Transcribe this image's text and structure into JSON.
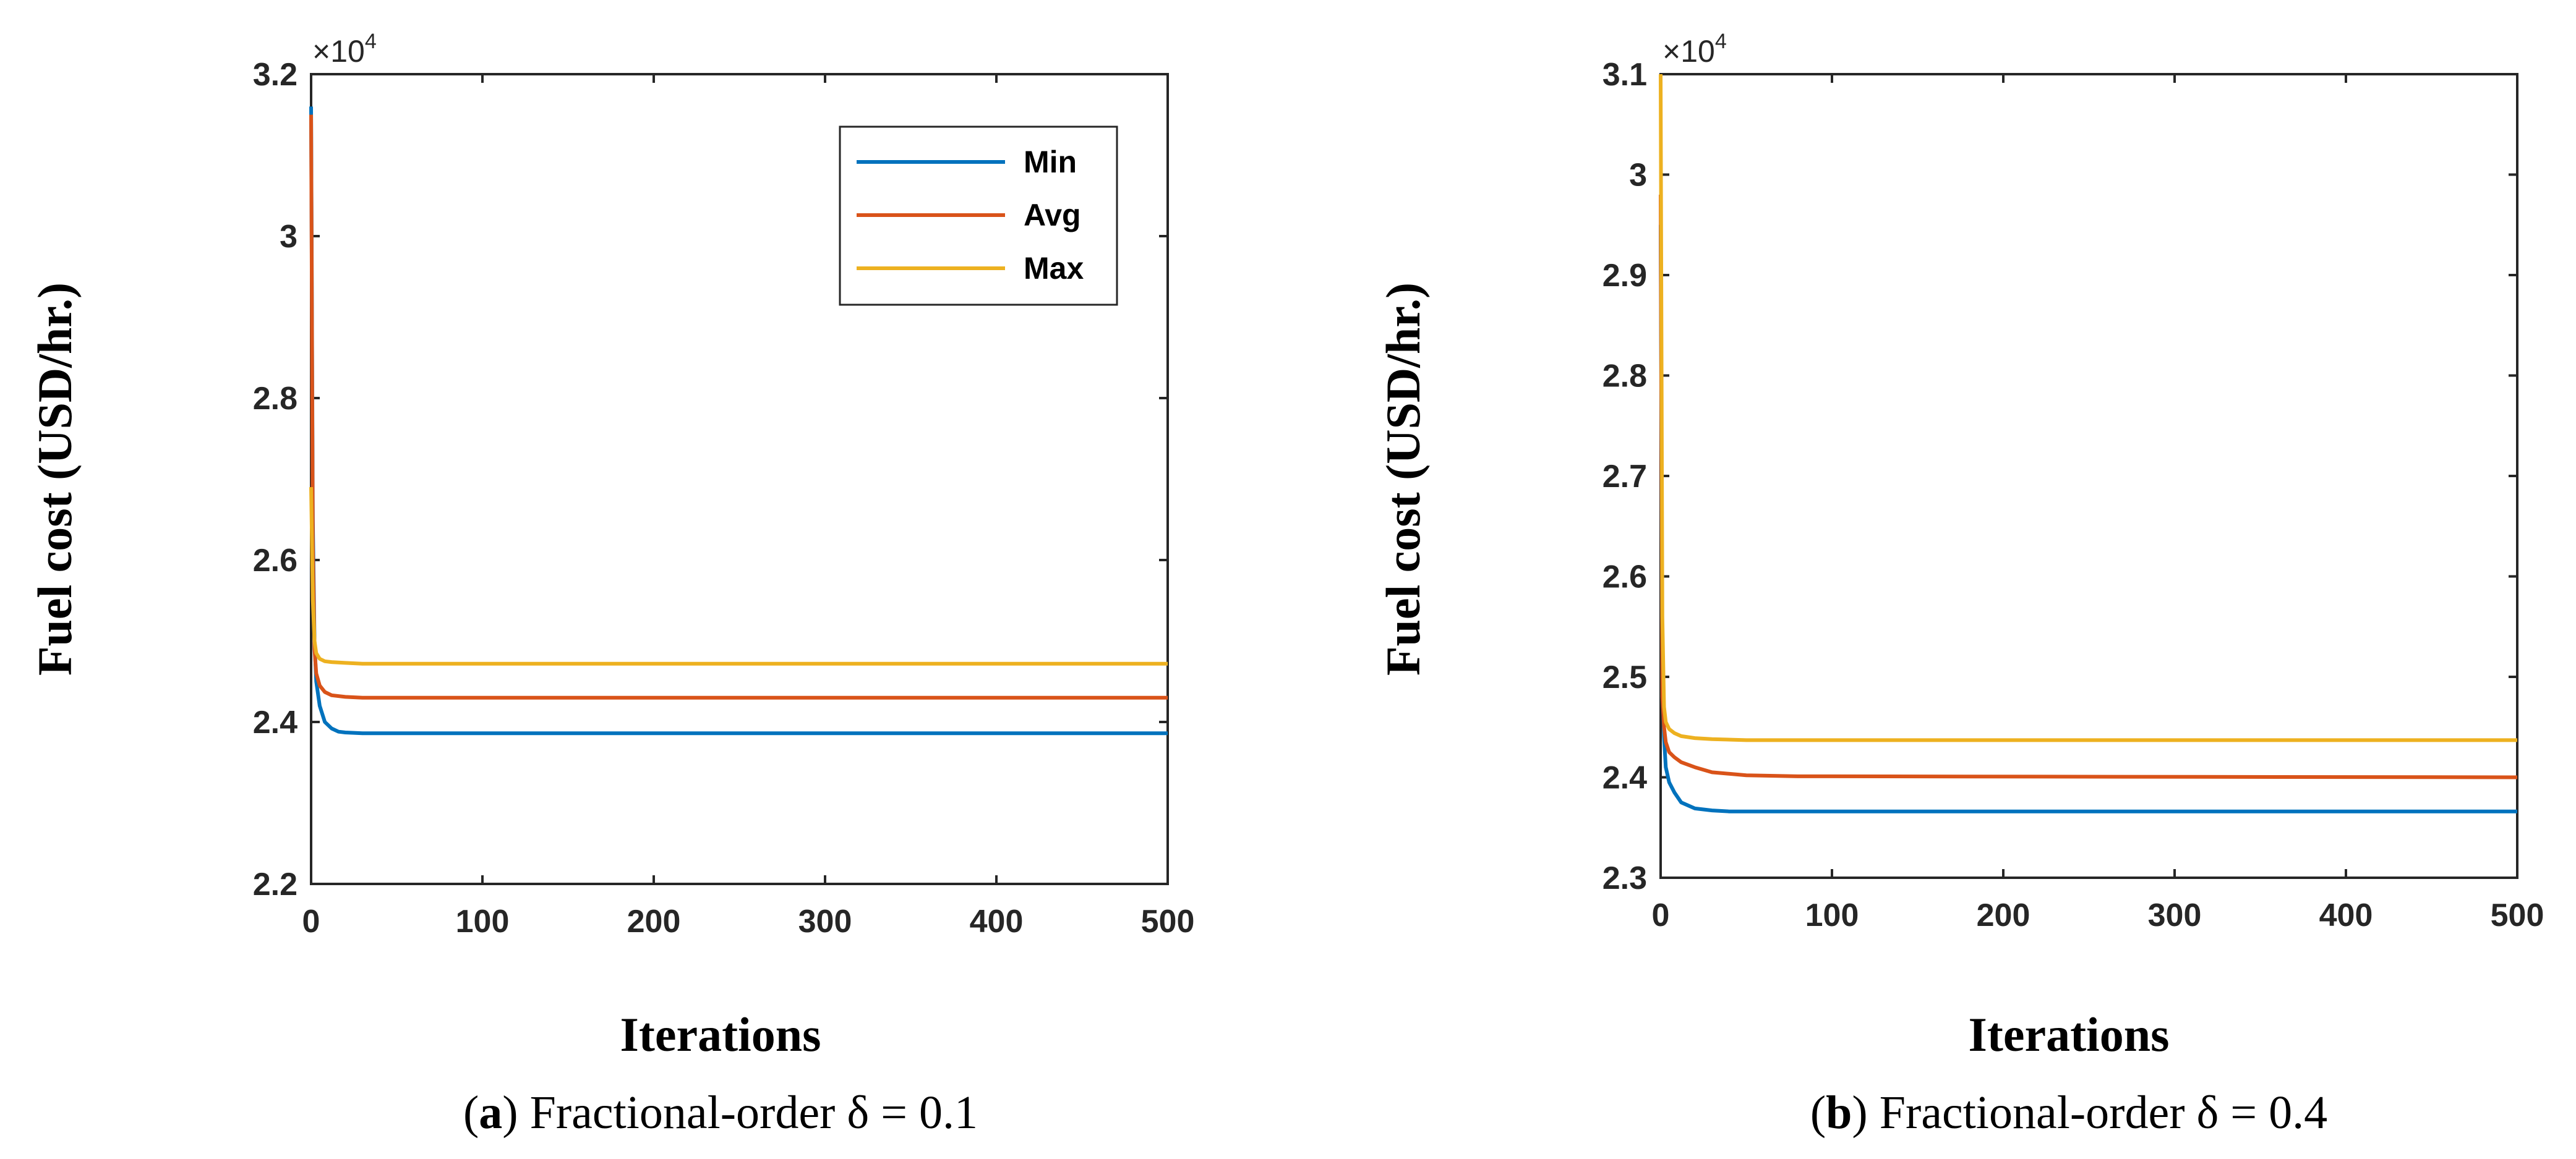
{
  "chart_data": [
    {
      "type": "line",
      "panel": "a",
      "caption_letter": "a",
      "caption_text": "Fractional-order δ = 0.1",
      "xlabel": "Iterations",
      "ylabel": "Fuel cost (USD/hr.)",
      "y_exponent_base": "×10",
      "y_exponent_power": "4",
      "xlim": [
        0,
        500
      ],
      "ylim": [
        2.2,
        3.2
      ],
      "xticks": [
        0,
        100,
        200,
        300,
        400,
        500
      ],
      "xtick_labels": [
        "0",
        "100",
        "200",
        "300",
        "400",
        "500"
      ],
      "yticks": [
        2.2,
        2.4,
        2.6,
        2.8,
        3.0,
        3.2
      ],
      "ytick_labels": [
        "2.2",
        "2.4",
        "2.6",
        "2.8",
        "3",
        "3.2"
      ],
      "legend_position": "top-right",
      "series": [
        {
          "name": "Min",
          "color": "#0072BD",
          "x": [
            0,
            1,
            2,
            3,
            5,
            8,
            12,
            16,
            20,
            30,
            50,
            100,
            500
          ],
          "y": [
            3.16,
            2.65,
            2.5,
            2.45,
            2.42,
            2.4,
            2.392,
            2.388,
            2.387,
            2.386,
            2.386,
            2.386,
            2.386
          ]
        },
        {
          "name": "Avg",
          "color": "#D95319",
          "x": [
            0,
            1,
            2,
            3,
            5,
            8,
            12,
            20,
            30,
            100,
            500
          ],
          "y": [
            3.15,
            2.62,
            2.49,
            2.46,
            2.445,
            2.437,
            2.433,
            2.431,
            2.43,
            2.43,
            2.43
          ]
        },
        {
          "name": "Max",
          "color": "#EDB120",
          "x": [
            0,
            1,
            2,
            3,
            5,
            8,
            12,
            20,
            30,
            100,
            500
          ],
          "y": [
            2.69,
            2.55,
            2.5,
            2.485,
            2.478,
            2.475,
            2.474,
            2.473,
            2.472,
            2.472,
            2.472
          ]
        }
      ]
    },
    {
      "type": "line",
      "panel": "b",
      "caption_letter": "b",
      "caption_text": "Fractional-order δ = 0.4",
      "xlabel": "Iterations",
      "ylabel": "Fuel cost (USD/hr.)",
      "y_exponent_base": "×10",
      "y_exponent_power": "4",
      "xlim": [
        0,
        500
      ],
      "ylim": [
        2.3,
        3.1
      ],
      "xticks": [
        0,
        100,
        200,
        300,
        400,
        500
      ],
      "xtick_labels": [
        "0",
        "100",
        "200",
        "300",
        "400",
        "500"
      ],
      "yticks": [
        2.3,
        2.4,
        2.5,
        2.6,
        2.7,
        2.8,
        2.9,
        3.0,
        3.1
      ],
      "ytick_labels": [
        "2.3",
        "2.4",
        "2.5",
        "2.6",
        "2.7",
        "2.8",
        "2.9",
        "3",
        "3.1"
      ],
      "series": [
        {
          "name": "Min",
          "color": "#0072BD",
          "x": [
            0,
            1,
            2,
            3,
            5,
            8,
            12,
            20,
            30,
            40,
            60,
            100,
            500
          ],
          "y": [
            2.95,
            2.5,
            2.44,
            2.41,
            2.395,
            2.385,
            2.375,
            2.369,
            2.367,
            2.366,
            2.366,
            2.366,
            2.366
          ]
        },
        {
          "name": "Avg",
          "color": "#D95319",
          "x": [
            0,
            1,
            2,
            3,
            5,
            8,
            12,
            20,
            30,
            50,
            80,
            100,
            500
          ],
          "y": [
            2.98,
            2.48,
            2.45,
            2.435,
            2.425,
            2.42,
            2.415,
            2.41,
            2.405,
            2.402,
            2.401,
            2.401,
            2.4
          ]
        },
        {
          "name": "Max",
          "color": "#EDB120",
          "x": [
            0,
            1,
            2,
            3,
            5,
            8,
            12,
            20,
            30,
            50,
            100,
            500
          ],
          "y": [
            3.1,
            2.56,
            2.47,
            2.455,
            2.448,
            2.444,
            2.441,
            2.439,
            2.438,
            2.437,
            2.437,
            2.437
          ]
        }
      ]
    }
  ]
}
